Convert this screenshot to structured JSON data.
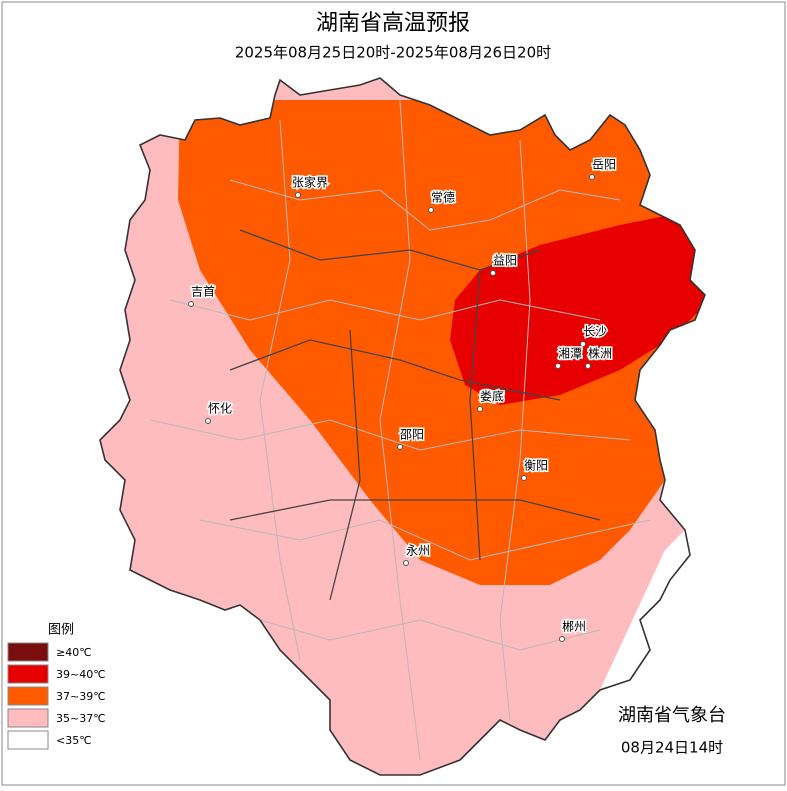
{
  "header": {
    "title": "湖南省高温预报",
    "subtitle": "2025年08月25日20时-2025年08月26日20时"
  },
  "cities": [
    "岳阳",
    "张家界",
    "常德",
    "益阳",
    "吉首",
    "长沙",
    "湘潭",
    "株洲",
    "娄底",
    "怀化",
    "邵阳",
    "衡阳",
    "永州",
    "郴州"
  ],
  "legend": {
    "title": "图例",
    "items": [
      {
        "label": "≥40℃",
        "color": "#7a0d0d"
      },
      {
        "label": "39~40℃",
        "color": "#e60000"
      },
      {
        "label": "37~39℃",
        "color": "#ff5a00"
      },
      {
        "label": "35~37℃",
        "color": "#ffbcbf"
      },
      {
        "label": "<35℃",
        "color": "#ffffff"
      }
    ]
  },
  "footer": {
    "issuer": "湖南省气象台",
    "date": "08月24日14时"
  }
}
